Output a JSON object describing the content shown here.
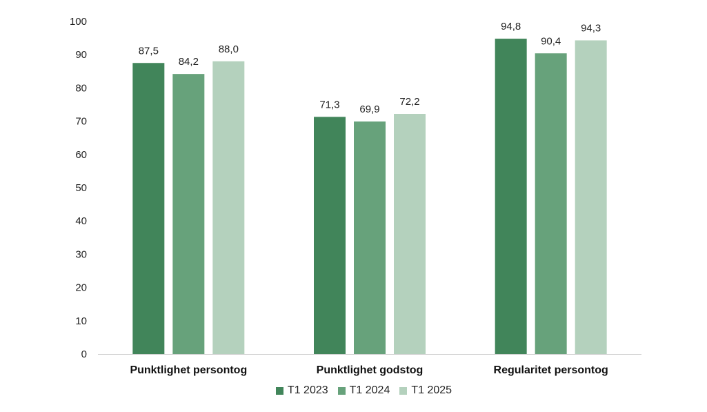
{
  "chart_data": {
    "type": "bar",
    "categories": [
      "Punktlighet persontog",
      "Punktlighet godstog",
      "Regularitet persontog"
    ],
    "series": [
      {
        "name": "T1 2023",
        "values": [
          87.5,
          71.3,
          94.8
        ],
        "labels": [
          "87,5",
          "71,3",
          "94,8"
        ],
        "color": "#41855a"
      },
      {
        "name": "T1 2024",
        "values": [
          84.2,
          69.9,
          90.4
        ],
        "labels": [
          "84,2",
          "69,9",
          "90,4"
        ],
        "color": "#67a27b"
      },
      {
        "name": "T1 2025",
        "values": [
          88.0,
          72.2,
          94.3
        ],
        "labels": [
          "88,0",
          "72,2",
          "94,3"
        ],
        "color": "#b4d1bd"
      }
    ],
    "ylim": [
      0,
      100
    ],
    "yticks": [
      "0",
      "10",
      "20",
      "30",
      "40",
      "50",
      "60",
      "70",
      "80",
      "90",
      "100"
    ],
    "grid": false,
    "legend_position": "bottom",
    "xlabel": "",
    "ylabel": ""
  }
}
